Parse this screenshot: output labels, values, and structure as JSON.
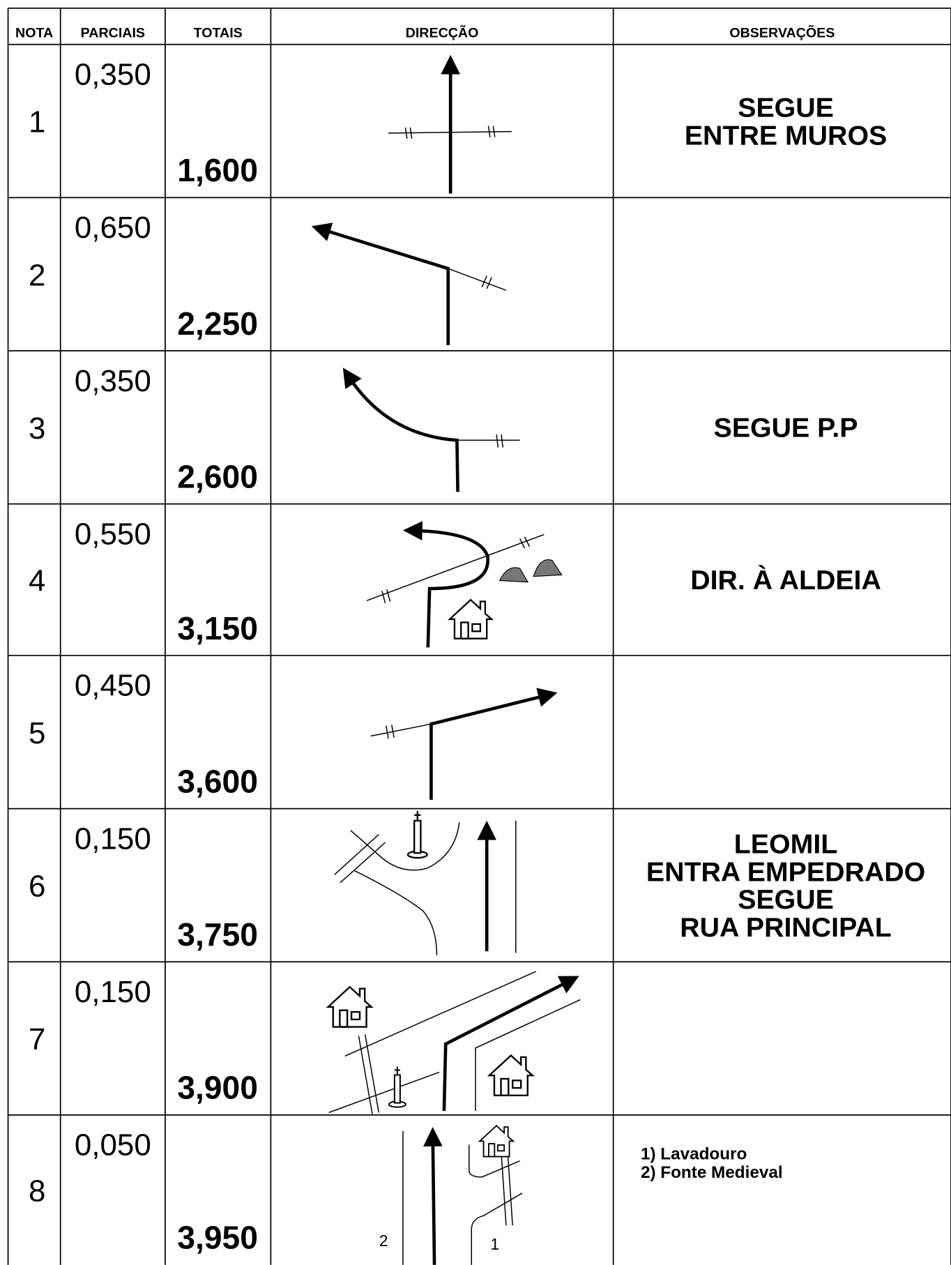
{
  "table": {
    "headers": [
      "NOTA",
      "PARCIAIS",
      "TOTAIS",
      "DIRECÇÃO",
      "OBSERVAÇÕES"
    ],
    "rows": [
      {
        "nota": "1",
        "parciais": "0,350",
        "totais": "1,600",
        "observacoes": [
          "SEGUE",
          "ENTRE MUROS"
        ]
      },
      {
        "nota": "2",
        "parciais": "0,650",
        "totais": "2,250",
        "observacoes": []
      },
      {
        "nota": "3",
        "parciais": "0,350",
        "totais": "2,600",
        "observacoes": [
          "SEGUE P.P"
        ]
      },
      {
        "nota": "4",
        "parciais": "0,550",
        "totais": "3,150",
        "observacoes": [
          "DIR. À ALDEIA"
        ]
      },
      {
        "nota": "5",
        "parciais": "0,450",
        "totais": "3,600",
        "observacoes": []
      },
      {
        "nota": "6",
        "parciais": "0,150",
        "totais": "3,750",
        "observacoes": [
          "LEOMIL",
          "ENTRA EMPEDRADO",
          "SEGUE",
          "RUA PRINCIPAL"
        ]
      },
      {
        "nota": "7",
        "parciais": "0,150",
        "totais": "3,900",
        "observacoes": []
      },
      {
        "nota": "8",
        "parciais": "0,050",
        "totais": "3,950",
        "observacoes": [],
        "notes": [
          "1) Lavadouro",
          "2) Fonte Medieval"
        ],
        "diagram_labels": [
          "2",
          "1"
        ]
      }
    ]
  }
}
